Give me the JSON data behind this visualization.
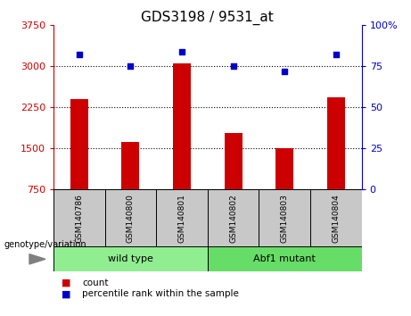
{
  "title": "GDS3198 / 9531_at",
  "samples": [
    "GSM140786",
    "GSM140800",
    "GSM140801",
    "GSM140802",
    "GSM140803",
    "GSM140804"
  ],
  "counts": [
    2400,
    1620,
    3050,
    1780,
    1500,
    2430
  ],
  "percentiles": [
    82,
    75,
    84,
    75,
    72,
    82
  ],
  "groups": [
    {
      "label": "wild type",
      "start": 0,
      "end": 3,
      "color": "#90EE90"
    },
    {
      "label": "Abf1 mutant",
      "start": 3,
      "end": 6,
      "color": "#66DD66"
    }
  ],
  "left_ylim": [
    750,
    3750
  ],
  "left_yticks": [
    750,
    1500,
    2250,
    3000,
    3750
  ],
  "right_ylim": [
    0,
    100
  ],
  "right_yticks": [
    0,
    25,
    50,
    75,
    100
  ],
  "bar_color": "#CC0000",
  "marker_color": "#0000CC",
  "label_bg_color": "#C8C8C8",
  "title_fontsize": 11,
  "tick_fontsize": 8,
  "legend_count_label": "count",
  "legend_pct_label": "percentile rank within the sample",
  "genotype_label": "genotype/variation"
}
